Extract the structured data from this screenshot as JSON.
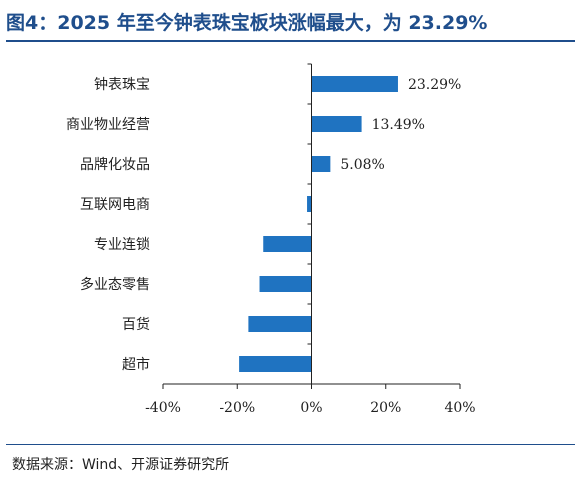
{
  "title": "图4：2025 年至今钟表珠宝板块涨幅最大，为 23.29%",
  "source": "数据来源：Wind、开源证券研究所",
  "chart_data": {
    "type": "bar",
    "orientation": "horizontal",
    "categories": [
      "钟表珠宝",
      "商业物业经营",
      "品牌化妆品",
      "互联网电商",
      "专业连锁",
      "多业态零售",
      "百货",
      "超市"
    ],
    "values": [
      23.29,
      13.49,
      5.08,
      -1.2,
      -13.0,
      -14.0,
      -17.0,
      -19.5
    ],
    "data_labels": [
      "23.29%",
      "13.49%",
      "5.08%",
      null,
      null,
      null,
      null,
      null
    ],
    "xlim": [
      -40,
      40
    ],
    "xticks": [
      -40,
      -20,
      0,
      20,
      40
    ],
    "xtick_labels": [
      "-40%",
      "-20%",
      "0%",
      "20%",
      "40%"
    ],
    "grid": false,
    "bar_color": "#1f73c1"
  }
}
